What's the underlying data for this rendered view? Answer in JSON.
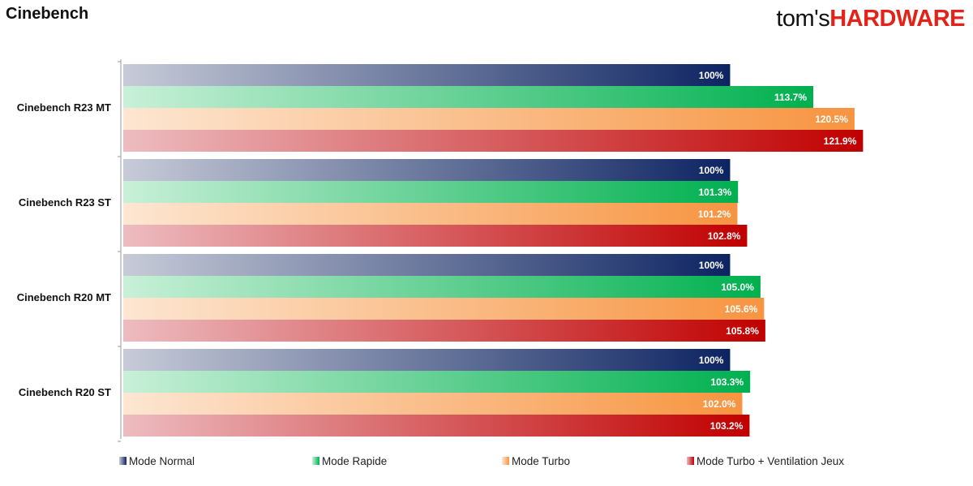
{
  "header": {
    "title": "Cinebench",
    "brand_part1": "tom's",
    "brand_part2": "HARDWARE"
  },
  "colors": {
    "Mode Normal": [
      "#c7cbd8",
      "#0d2462"
    ],
    "Mode Rapide": [
      "#c8f0d8",
      "#00b04f"
    ],
    "Mode Turbo": [
      "#fde6d2",
      "#f79440"
    ],
    "Mode Turbo + Ventilation Jeux": [
      "#edbcc0",
      "#c00000"
    ]
  },
  "chart_data": {
    "type": "bar",
    "orientation": "horizontal",
    "title": "Cinebench",
    "categories": [
      "Cinebench R23 MT",
      "Cinebench R23 ST",
      "Cinebench R20 MT",
      "Cinebench R20 ST"
    ],
    "series": [
      {
        "name": "Mode Normal",
        "values": [
          100,
          100,
          100,
          100
        ],
        "labels": [
          "100%",
          "100%",
          "100%",
          "100%"
        ]
      },
      {
        "name": "Mode Rapide",
        "values": [
          113.7,
          101.3,
          105.0,
          103.3
        ],
        "labels": [
          "113.7%",
          "101.3%",
          "105.0%",
          "103.3%"
        ]
      },
      {
        "name": "Mode Turbo",
        "values": [
          120.5,
          101.2,
          105.6,
          102.0
        ],
        "labels": [
          "120.5%",
          "101.2%",
          "105.6%",
          "102.0%"
        ]
      },
      {
        "name": "Mode Turbo + Ventilation Jeux",
        "values": [
          121.9,
          102.8,
          105.8,
          103.2
        ],
        "labels": [
          "121.9%",
          "102.8%",
          "105.8%",
          "103.2%"
        ]
      }
    ],
    "xlim": [
      0,
      122
    ],
    "grid": false,
    "legend_position": "bottom"
  }
}
